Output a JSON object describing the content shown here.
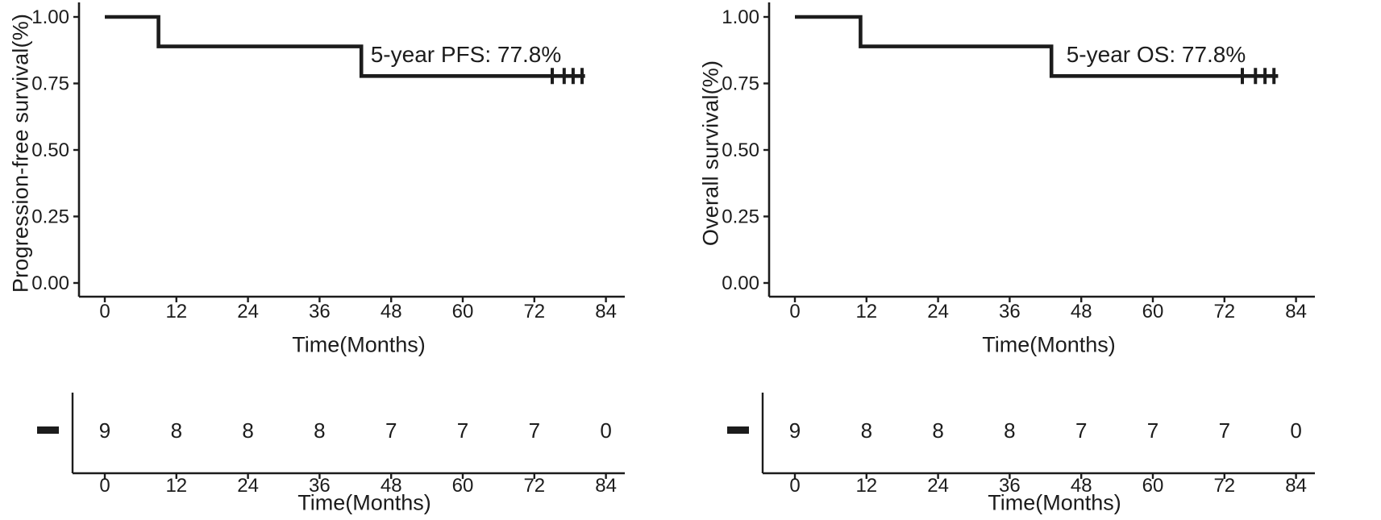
{
  "page": {
    "background": "#ffffff",
    "ink": "#1c1c1c"
  },
  "chart_data": [
    {
      "type": "line",
      "variant": "kaplan-meier-step",
      "ylabel": "Progression-free survival(%)",
      "xlabel": "Time(Months)",
      "annotation": "5-year PFS: 77.8%",
      "xlim": [
        0,
        87
      ],
      "ylim": [
        0,
        1
      ],
      "grid": false,
      "x_ticks": [
        0,
        12,
        24,
        36,
        48,
        60,
        72,
        84
      ],
      "y_ticks": [
        {
          "value": 1.0,
          "label": "1.00"
        },
        {
          "value": 0.75,
          "label": "0.75"
        },
        {
          "value": 0.5,
          "label": "0.50"
        },
        {
          "value": 0.25,
          "label": "0.25"
        },
        {
          "value": 0.0,
          "label": "0.00"
        }
      ],
      "steps": [
        [
          0,
          1.0
        ],
        [
          9,
          1.0
        ],
        [
          9,
          0.889
        ],
        [
          43,
          0.889
        ],
        [
          43,
          0.778
        ],
        [
          80.5,
          0.778
        ]
      ],
      "censor_marks": {
        "value": 0.778,
        "times": [
          75,
          77,
          78.5,
          80
        ]
      },
      "line_color": "#1c1c1c",
      "risk_table": {
        "marker": "dash",
        "xlabel": "Time(Months)",
        "times": [
          0,
          12,
          24,
          36,
          48,
          60,
          72,
          84
        ],
        "at_risk": [
          9,
          8,
          8,
          8,
          7,
          7,
          7,
          0
        ]
      }
    },
    {
      "type": "line",
      "variant": "kaplan-meier-step",
      "ylabel": "Overall survival(%)",
      "xlabel": "Time(Months)",
      "annotation": "5-year OS: 77.8%",
      "xlim": [
        0,
        87
      ],
      "ylim": [
        0,
        1
      ],
      "grid": false,
      "x_ticks": [
        0,
        12,
        24,
        36,
        48,
        60,
        72,
        84
      ],
      "y_ticks": [
        {
          "value": 1.0,
          "label": "1.00"
        },
        {
          "value": 0.75,
          "label": "0.75"
        },
        {
          "value": 0.5,
          "label": "0.50"
        },
        {
          "value": 0.25,
          "label": "0.25"
        },
        {
          "value": 0.0,
          "label": "0.00"
        }
      ],
      "steps": [
        [
          0,
          1.0
        ],
        [
          11,
          1.0
        ],
        [
          11,
          0.889
        ],
        [
          43,
          0.889
        ],
        [
          43,
          0.778
        ],
        [
          81,
          0.778
        ]
      ],
      "censor_marks": {
        "value": 0.778,
        "times": [
          75,
          77.2,
          78.8,
          80.3
        ]
      },
      "line_color": "#1c1c1c",
      "risk_table": {
        "marker": "dash",
        "xlabel": "Time(Months)",
        "times": [
          0,
          12,
          24,
          36,
          48,
          60,
          72,
          84
        ],
        "at_risk": [
          9,
          8,
          8,
          8,
          7,
          7,
          7,
          0
        ]
      }
    }
  ]
}
